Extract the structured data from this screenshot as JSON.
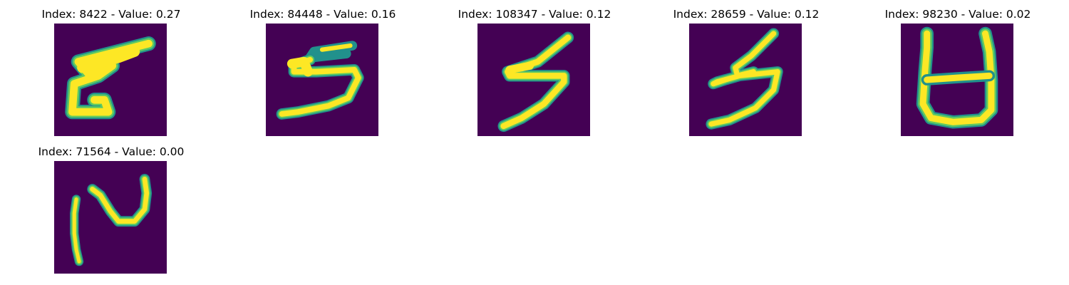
{
  "colors": {
    "background": "#440154",
    "stroke_outer": "#21918c",
    "stroke_mid": "#5ec962",
    "stroke_inner": "#fde725"
  },
  "panels": [
    {
      "title": "Index: 8422 - Value: 0.27",
      "index": 8422,
      "value": 0.27,
      "glyph": "5-like"
    },
    {
      "title": "Index: 84448 - Value: 0.16",
      "index": 84448,
      "value": 0.16,
      "glyph": "5"
    },
    {
      "title": "Index: 108347 - Value: 0.12",
      "index": 108347,
      "value": 0.12,
      "glyph": "5"
    },
    {
      "title": "Index: 28659 - Value: 0.12",
      "index": 28659,
      "value": 0.12,
      "glyph": "5"
    },
    {
      "title": "Index: 98230 - Value: 0.02",
      "index": 98230,
      "value": 0.02,
      "glyph": "H-like"
    },
    {
      "title": "Index: 71564 - Value: 0.00",
      "index": 71564,
      "value": 0.0,
      "glyph": "N-like"
    }
  ]
}
